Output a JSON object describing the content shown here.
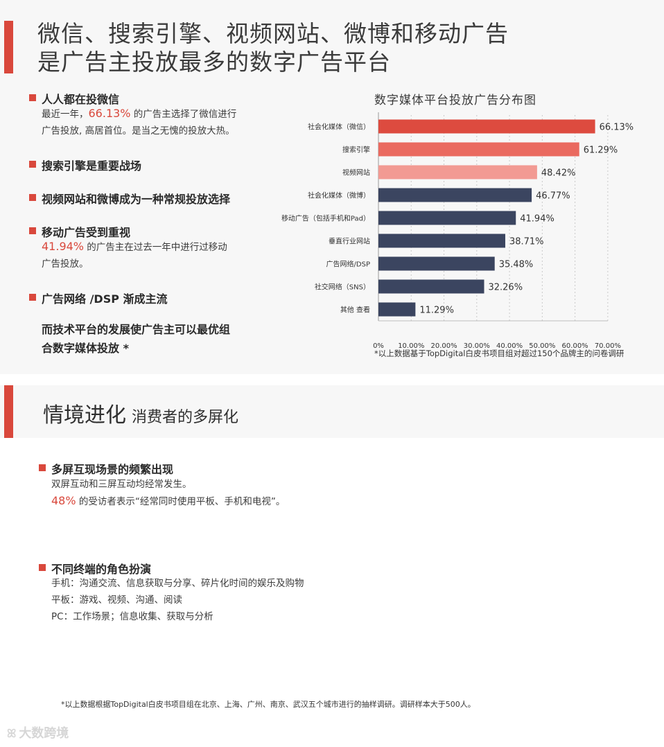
{
  "section1": {
    "title_line1": "微信、搜索引擎、视频网站、微博和移动广告",
    "title_line2": "是广告主投放最多的数字广告平台",
    "bullets": [
      {
        "heading": "人人都在投微信",
        "pre": "最近一年，",
        "highlight": "66.13%",
        "post": " 的广告主选择了微信进行",
        "line2": "广告投放, 高居首位。是当之无愧的投放大热。"
      },
      {
        "heading": "搜索引擎是重要战场"
      },
      {
        "heading": "视频网站和微博成为一种常规投放选择"
      },
      {
        "heading": "移动广告受到重视",
        "highlight": "41.94%",
        "post": " 的广告主在过去一年中进行过移动",
        "line2": "广告投放。"
      },
      {
        "heading": "广告网络 /DSP 渐成主流"
      }
    ],
    "closing_line1": "而技术平台的发展使广告主可以最优组",
    "closing_line2": "合数字媒体投放 *"
  },
  "chart_data": {
    "type": "bar",
    "orientation": "horizontal",
    "title": "数字媒体平台投放广告分布图",
    "categories": [
      "社会化媒体（微信）",
      "搜索引擎",
      "视频网站",
      "社会化媒体（微博）",
      "移动广告（包括手机和Pad）",
      "垂直行业网站",
      "广告网络/DSP",
      "社交网络（SNS）",
      "其他 查看"
    ],
    "values": [
      66.13,
      61.29,
      48.42,
      46.77,
      41.94,
      38.71,
      35.48,
      32.26,
      11.29
    ],
    "value_labels": [
      "66.13%",
      "61.29%",
      "48.42%",
      "46.77%",
      "41.94%",
      "38.71%",
      "35.48%",
      "32.26%",
      "11.29%"
    ],
    "bar_colors": [
      "#dd4b3f",
      "#ea6a60",
      "#f29a93",
      "#3b4560",
      "#3b4560",
      "#3b4560",
      "#3b4560",
      "#3b4560",
      "#3b4560"
    ],
    "x_ticks": [
      "0%",
      "10.00%",
      "20.00%",
      "30.00%",
      "40.00%",
      "50.00%",
      "60.00%",
      "70.00%"
    ],
    "xlim": [
      0,
      70
    ],
    "grid": "vertical dotted",
    "note": "*以上数据基于TopDigital白皮书项目组对超过150个品牌主的问卷调研"
  },
  "section2": {
    "title_big": "情境进化",
    "title_small": "消费者的多屏化",
    "bullet1": {
      "heading": "多屏互现场景的频繁出现",
      "line1": "双屏互动和三屏互动均经常发生。",
      "highlight": "48%",
      "line2": " 的受访者表示“经常同时使用平板、手机和电视”。"
    },
    "bullet2": {
      "heading": "不同终端的角色扮演",
      "lines": [
        "手机：沟通交流、信息获取与分享、碎片化时间的娱乐及购物",
        "平板：游戏、视频、沟通、阅读",
        "PC：工作场景；信息收集、获取与分析"
      ]
    },
    "footnote": "*以上数据根据TopDigital白皮书项目组在北京、上海、广州、南京、武汉五个城市进行的抽样调研。调研样本大于500人。"
  },
  "watermark": {
    "logo": "ꕤ",
    "text": "大数跨境"
  },
  "colors": {
    "accent": "#d9483c",
    "navy": "#3b4560"
  }
}
